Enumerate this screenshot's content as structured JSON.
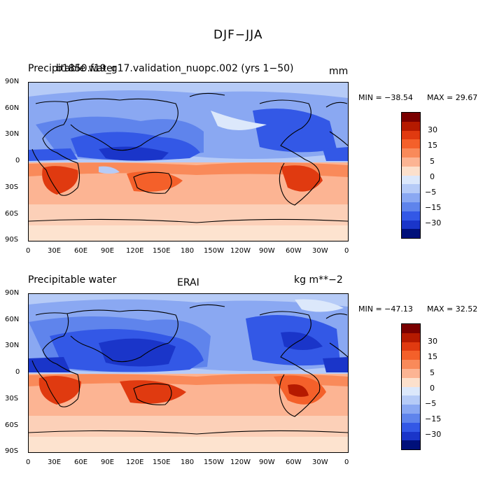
{
  "figure_title": "DJF−JJA",
  "panels": [
    {
      "left_title": "Precipitable water",
      "case_title": "b1850.f19_g17.validation_nuopc.002 (yrs 1−50)",
      "units": "mm",
      "min_label": "MIN = −38.54",
      "max_label": "MAX =  29.67",
      "lat_ticks": [
        "90N",
        "60N",
        "30N",
        "0",
        "30S",
        "60S",
        "90S"
      ],
      "lon_ticks": [
        "0",
        "30E",
        "60E",
        "90E",
        "120E",
        "150E",
        "180",
        "150W",
        "120W",
        "90W",
        "60W",
        "30W",
        "0"
      ],
      "colorbar_labels": [
        "30",
        "15",
        "5",
        "0",
        "−5",
        "−15",
        "−30"
      ]
    },
    {
      "left_title": "Precipitable water",
      "case_title": "ERAI",
      "units": "kg m**−2",
      "min_label": "MIN = −47.13",
      "max_label": "MAX =  32.52",
      "lat_ticks": [
        "90N",
        "60N",
        "30N",
        "0",
        "30S",
        "60S",
        "90S"
      ],
      "lon_ticks": [
        "0",
        "30E",
        "60E",
        "90E",
        "120E",
        "150E",
        "180",
        "150W",
        "120W",
        "90W",
        "60W",
        "30W",
        "0"
      ],
      "colorbar_labels": [
        "30",
        "15",
        "5",
        "0",
        "−5",
        "−15",
        "−30"
      ]
    }
  ],
  "colorbar_colors": [
    "#7a0000",
    "#b51a00",
    "#e03a10",
    "#f4602a",
    "#f98a5a",
    "#fcb493",
    "#fce0cc",
    "#dce8fb",
    "#b6cbf7",
    "#8aa8f2",
    "#5f84ec",
    "#3358e6",
    "#1a35c9",
    "#00107a"
  ]
}
